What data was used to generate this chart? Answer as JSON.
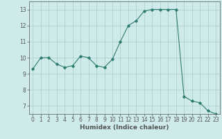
{
  "x": [
    0,
    1,
    2,
    3,
    4,
    5,
    6,
    7,
    8,
    9,
    10,
    11,
    12,
    13,
    14,
    15,
    16,
    17,
    18,
    19,
    20,
    21,
    22,
    23
  ],
  "y": [
    9.3,
    10.0,
    10.0,
    9.6,
    9.4,
    9.5,
    10.1,
    10.0,
    9.5,
    9.4,
    9.9,
    11.0,
    12.0,
    12.3,
    12.9,
    13.0,
    13.0,
    13.0,
    13.0,
    7.6,
    7.3,
    7.2,
    6.7,
    6.5
  ],
  "line_color": "#2e7d6e",
  "marker": "D",
  "marker_size": 1.8,
  "linewidth": 0.8,
  "xlabel": "Humidex (Indice chaleur)",
  "ylabel": "",
  "xlim": [
    -0.5,
    23.5
  ],
  "ylim": [
    6.5,
    13.5
  ],
  "yticks": [
    7,
    8,
    9,
    10,
    11,
    12,
    13
  ],
  "xticks": [
    0,
    1,
    2,
    3,
    4,
    5,
    6,
    7,
    8,
    9,
    10,
    11,
    12,
    13,
    14,
    15,
    16,
    17,
    18,
    19,
    20,
    21,
    22,
    23
  ],
  "bg_color": "#ceeaea",
  "grid_color": "#aacccc",
  "tick_fontsize": 5.5,
  "label_fontsize": 6.5,
  "spine_color": "#555555"
}
